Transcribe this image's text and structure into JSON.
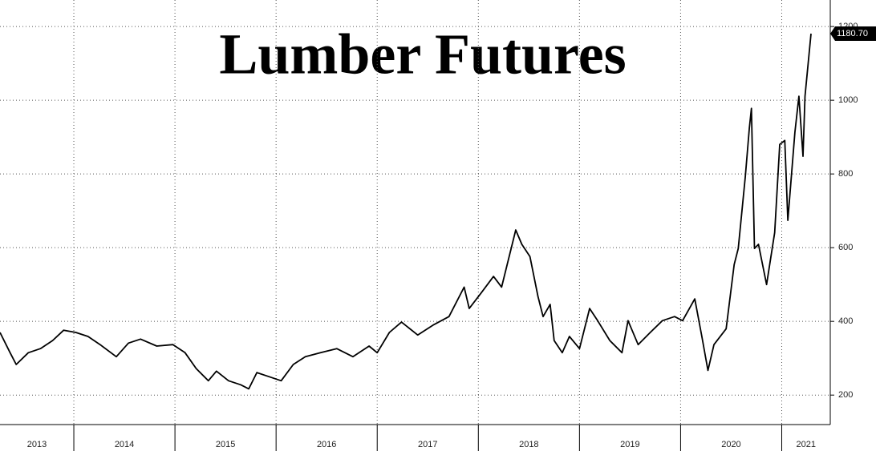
{
  "chart_data": {
    "type": "line",
    "title": "Lumber Futures",
    "x": [
      2013.27,
      2013.37,
      2013.43,
      2013.55,
      2013.67,
      2013.79,
      2013.9,
      2014.02,
      2014.14,
      2014.26,
      2014.42,
      2014.54,
      2014.66,
      2014.82,
      2014.98,
      2015.1,
      2015.21,
      2015.33,
      2015.41,
      2015.53,
      2015.65,
      2015.73,
      2015.81,
      2015.93,
      2016.05,
      2016.17,
      2016.29,
      2016.44,
      2016.6,
      2016.76,
      2016.92,
      2017.0,
      2017.12,
      2017.24,
      2017.4,
      2017.56,
      2017.71,
      2017.86,
      2017.91,
      2018.03,
      2018.15,
      2018.23,
      2018.37,
      2018.43,
      2018.51,
      2018.59,
      2018.64,
      2018.71,
      2018.75,
      2018.83,
      2018.9,
      2019.0,
      2019.1,
      2019.18,
      2019.3,
      2019.42,
      2019.48,
      2019.58,
      2019.7,
      2019.82,
      2019.94,
      2020.02,
      2020.14,
      2020.21,
      2020.27,
      2020.33,
      2020.45,
      2020.53,
      2020.57,
      2020.64,
      2020.68,
      2020.7,
      2020.73,
      2020.77,
      2020.85,
      2020.93,
      2020.98,
      2021.03,
      2021.06,
      2021.13,
      2021.17,
      2021.21,
      2021.23,
      2021.29
    ],
    "series": [
      {
        "color": "#000000",
        "values": [
          370,
          315,
          283,
          315,
          326,
          348,
          376,
          370,
          359,
          337,
          304,
          341,
          352,
          333,
          337,
          315,
          272,
          239,
          265,
          239,
          228,
          217,
          261,
          250,
          239,
          283,
          304,
          315,
          326,
          304,
          333,
          315,
          370,
          398,
          363,
          391,
          413,
          493,
          435,
          478,
          522,
          493,
          648,
          609,
          576,
          467,
          413,
          446,
          348,
          315,
          359,
          326,
          435,
          402,
          348,
          315,
          402,
          337,
          370,
          402,
          413,
          402,
          461,
          359,
          267,
          337,
          380,
          554,
          598,
          793,
          924,
          978,
          598,
          609,
          500,
          641,
          880,
          891,
          674,
          913,
          1011,
          848,
          1011,
          1180.7
        ]
      }
    ],
    "last_label": "1180.70",
    "xlim": [
      2013.27,
      2021.48
    ],
    "xticks": [
      2013,
      2014,
      2015,
      2016,
      2017,
      2018,
      2019,
      2020,
      2021
    ],
    "ylim": [
      120,
      1272
    ],
    "yticks": [
      200,
      400,
      600,
      800,
      1000,
      1200
    ],
    "grid": true
  }
}
